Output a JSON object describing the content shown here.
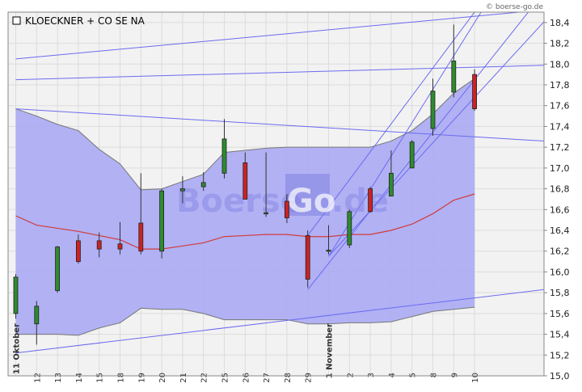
{
  "chart_data": {
    "type": "candlestick",
    "title": "KLOECKNER + CO SE NA",
    "credit": "© boerse-go.de",
    "watermark": {
      "part1": "Boerse",
      "part2": "Go",
      "part3": ".de"
    },
    "ylim": [
      15.0,
      18.5
    ],
    "yticks": [
      "15,0",
      "15,2",
      "15,4",
      "15,6",
      "15,8",
      "16,0",
      "16,2",
      "16,4",
      "16,6",
      "16,8",
      "17,0",
      "17,2",
      "17,4",
      "17,6",
      "17,8",
      "18,0",
      "18,2",
      "18,4"
    ],
    "grid": true,
    "categories": [
      "11 Oktober",
      "12",
      "13",
      "14",
      "15",
      "18",
      "19",
      "20",
      "21",
      "22",
      "25",
      "26",
      "27",
      "28",
      "29",
      "1 November",
      "2",
      "3",
      "4",
      "5",
      "8",
      "9",
      "10"
    ],
    "colors": {
      "band_fill": "#aaaaf4",
      "band_edge": "#777777",
      "middle_line": "#d23c3c",
      "trend_line": "#6b6bf0",
      "up_candle": "#2e8b2e",
      "down_candle": "#cc2222",
      "grid": "#dcdcdc",
      "plot_bg": "#f2f2f2"
    },
    "candles": [
      {
        "date": "11 Oktober",
        "open": 15.6,
        "high": 15.98,
        "low": 15.55,
        "close": 15.95
      },
      {
        "date": "12",
        "open": 15.5,
        "high": 15.72,
        "low": 15.3,
        "close": 15.67
      },
      {
        "date": "13",
        "open": 15.82,
        "high": 16.25,
        "low": 15.8,
        "close": 16.24
      },
      {
        "date": "14",
        "open": 16.3,
        "high": 16.36,
        "low": 16.08,
        "close": 16.1
      },
      {
        "date": "15",
        "open": 16.3,
        "high": 16.38,
        "low": 16.14,
        "close": 16.22
      },
      {
        "date": "18",
        "open": 16.27,
        "high": 16.48,
        "low": 16.17,
        "close": 16.22
      },
      {
        "date": "19",
        "open": 16.47,
        "high": 16.95,
        "low": 16.17,
        "close": 16.2
      },
      {
        "date": "20",
        "open": 16.2,
        "high": 16.8,
        "low": 16.13,
        "close": 16.78
      },
      {
        "date": "21",
        "open": 16.78,
        "high": 16.92,
        "low": 16.66,
        "close": 16.8
      },
      {
        "date": "22",
        "open": 16.82,
        "high": 16.96,
        "low": 16.78,
        "close": 16.86
      },
      {
        "date": "25",
        "open": 16.95,
        "high": 17.47,
        "low": 16.9,
        "close": 17.28
      },
      {
        "date": "26",
        "open": 17.05,
        "high": 17.15,
        "low": 16.7,
        "close": 16.7
      },
      {
        "date": "27",
        "open": 16.57,
        "high": 17.15,
        "low": 16.53,
        "close": 16.57
      },
      {
        "date": "28",
        "open": 16.68,
        "high": 16.75,
        "low": 16.47,
        "close": 16.52
      },
      {
        "date": "29",
        "open": 16.35,
        "high": 16.4,
        "low": 15.85,
        "close": 15.93
      },
      {
        "date": "1 November",
        "open": 16.2,
        "high": 16.45,
        "low": 16.17,
        "close": 16.21
      },
      {
        "date": "2",
        "open": 16.26,
        "high": 16.6,
        "low": 16.23,
        "close": 16.58
      },
      {
        "date": "3",
        "open": 16.8,
        "high": 16.82,
        "low": 16.57,
        "close": 16.58
      },
      {
        "date": "4",
        "open": 16.73,
        "high": 17.17,
        "low": 16.73,
        "close": 16.95
      },
      {
        "date": "5",
        "open": 17.0,
        "high": 17.27,
        "low": 17.0,
        "close": 17.25
      },
      {
        "date": "8",
        "open": 17.38,
        "high": 17.86,
        "low": 17.31,
        "close": 17.74
      },
      {
        "date": "9",
        "open": 17.73,
        "high": 18.38,
        "low": 17.68,
        "close": 18.03
      },
      {
        "date": "10",
        "open": 17.9,
        "high": 17.95,
        "low": 17.55,
        "close": 17.57
      }
    ],
    "band_upper": [
      17.57,
      17.5,
      17.42,
      17.36,
      17.18,
      17.04,
      16.79,
      16.8,
      16.87,
      16.94,
      17.15,
      17.17,
      17.19,
      17.2,
      17.2,
      17.2,
      17.2,
      17.2,
      17.26,
      17.36,
      17.52,
      17.72,
      17.86
    ],
    "band_middle": [
      16.54,
      16.45,
      16.42,
      16.39,
      16.35,
      16.31,
      16.22,
      16.22,
      16.25,
      16.28,
      16.34,
      16.35,
      16.36,
      16.36,
      16.34,
      16.34,
      16.36,
      16.36,
      16.4,
      16.46,
      16.56,
      16.69,
      16.75
    ],
    "band_lower": [
      15.4,
      15.4,
      15.4,
      15.39,
      15.46,
      15.51,
      15.65,
      15.64,
      15.64,
      15.6,
      15.54,
      15.54,
      15.54,
      15.54,
      15.5,
      15.5,
      15.51,
      15.51,
      15.52,
      15.57,
      15.62,
      15.64,
      15.66
    ],
    "trendlines": [
      {
        "from": {
          "date": "11 Oktober",
          "value": 18.05
        },
        "to": {
          "date": "10",
          "value": 18.46
        }
      },
      {
        "from": {
          "date": "11 Oktober",
          "value": 17.85
        },
        "to": {
          "date": "10",
          "value": 17.97
        }
      },
      {
        "from": {
          "date": "11 Oktober",
          "value": 17.57
        },
        "to": {
          "date": "10",
          "value": 17.3
        }
      },
      {
        "from": {
          "date": "11 Oktober",
          "value": 15.22
        },
        "to": {
          "date": "10",
          "value": 15.75
        }
      },
      {
        "from": {
          "date": "29",
          "value": 15.83
        },
        "to": {
          "date": "10",
          "value": 17.85
        }
      },
      {
        "from": {
          "date": "29",
          "value": 16.35
        },
        "to": {
          "date": "10",
          "value": 18.5
        }
      },
      {
        "from": {
          "date": "1 November",
          "value": 16.15
        },
        "to": {
          "date": "10",
          "value": 18.4
        }
      },
      {
        "from": {
          "date": "1 November",
          "value": 16.15
        },
        "to": {
          "date": "10",
          "value": 17.68
        }
      }
    ]
  }
}
